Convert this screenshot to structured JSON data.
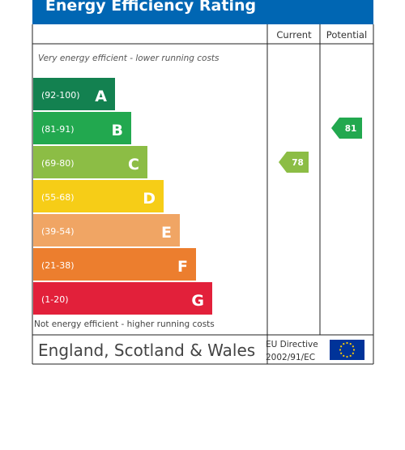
{
  "title": "Energy Efficiency Rating",
  "columns": {
    "current": "Current",
    "potential": "Potential"
  },
  "top_note": "Very energy efficient - lower running costs",
  "bottom_note": "Not energy efficient - higher running costs",
  "footer": {
    "region": "England, Scotland & Wales",
    "directive_line1": "EU Directive",
    "directive_line2": "2002/91/EC"
  },
  "colors": {
    "title_bg": "#0066b3",
    "A": "#138150",
    "B": "#22a84f",
    "C": "#8cbd45",
    "D": "#f6cd17",
    "E": "#f0a564",
    "F": "#ec7e2e",
    "G": "#e2203a",
    "eu_flag": "#003399",
    "eu_stars": "#ffcc00"
  },
  "chart_data": {
    "type": "bar",
    "categories": [
      "A",
      "B",
      "C",
      "D",
      "E",
      "F",
      "G"
    ],
    "bands": [
      {
        "letter": "A",
        "range": "(92-100)"
      },
      {
        "letter": "B",
        "range": "(81-91)"
      },
      {
        "letter": "C",
        "range": "(69-80)"
      },
      {
        "letter": "D",
        "range": "(55-68)"
      },
      {
        "letter": "E",
        "range": "(39-54)"
      },
      {
        "letter": "F",
        "range": "(21-38)"
      },
      {
        "letter": "G",
        "range": "(1-20)"
      }
    ],
    "current": {
      "value": 78,
      "band": "C"
    },
    "potential": {
      "value": 81,
      "band": "B"
    }
  }
}
